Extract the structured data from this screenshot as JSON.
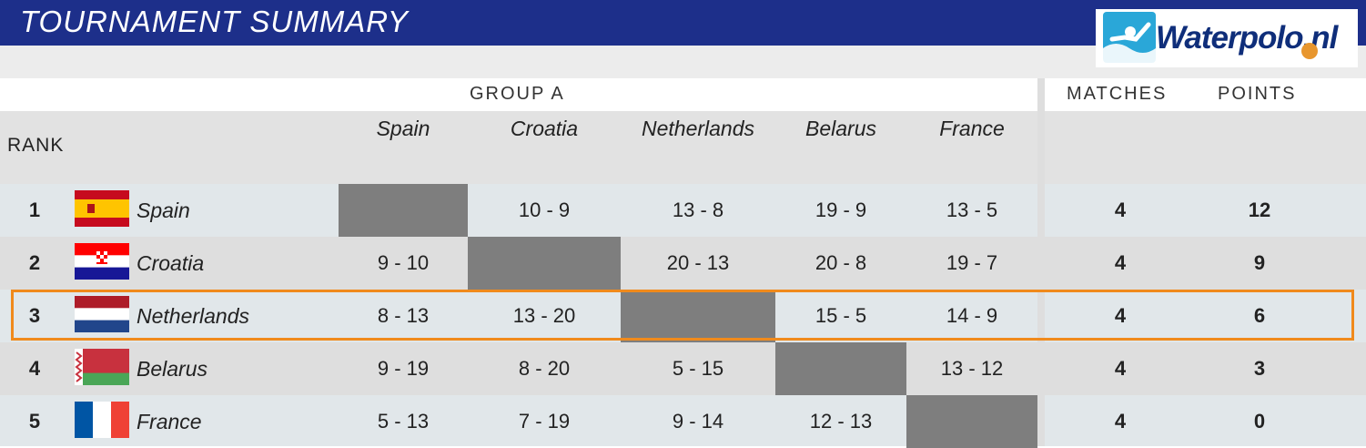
{
  "header": {
    "title": "TOURNAMENT SUMMARY",
    "logo_text": "Waterpolo.nl"
  },
  "table": {
    "group_label": "GROUP A",
    "matches_label": "MATCHES",
    "points_label": "POINTS",
    "rank_label": "RANK",
    "columns": [
      "Spain",
      "Croatia",
      "Netherlands",
      "Belarus",
      "France"
    ],
    "rows": [
      {
        "rank": "1",
        "team": "Spain",
        "flag": "spain-flag",
        "scores": [
          "",
          "10 - 9",
          "13 - 8",
          "19 - 9",
          "13 - 5"
        ],
        "matches": "4",
        "points": "12"
      },
      {
        "rank": "2",
        "team": "Croatia",
        "flag": "croatia-flag",
        "scores": [
          "9 - 10",
          "",
          "20 - 13",
          "20 - 8",
          "19 - 7"
        ],
        "matches": "4",
        "points": "9"
      },
      {
        "rank": "3",
        "team": "Netherlands",
        "flag": "netherlands-flag",
        "scores": [
          "8 - 13",
          "13 - 20",
          "",
          "15 - 5",
          "14 - 9"
        ],
        "matches": "4",
        "points": "6"
      },
      {
        "rank": "4",
        "team": "Belarus",
        "flag": "belarus-flag",
        "scores": [
          "9 - 19",
          "8 - 20",
          "5 - 15",
          "",
          "13 - 12"
        ],
        "matches": "4",
        "points": "3"
      },
      {
        "rank": "5",
        "team": "France",
        "flag": "france-flag",
        "scores": [
          "5 - 13",
          "7 - 19",
          "9 - 14",
          "12 - 13",
          ""
        ],
        "matches": "4",
        "points": "0"
      }
    ],
    "highlighted_team": "Netherlands"
  },
  "colors": {
    "title_bar": "#1d2f8a",
    "highlight_border": "#f08a1c",
    "diagonal_block": "#7e7e7e",
    "row_light": "#e1e7ea",
    "row_gray": "#dedede"
  }
}
